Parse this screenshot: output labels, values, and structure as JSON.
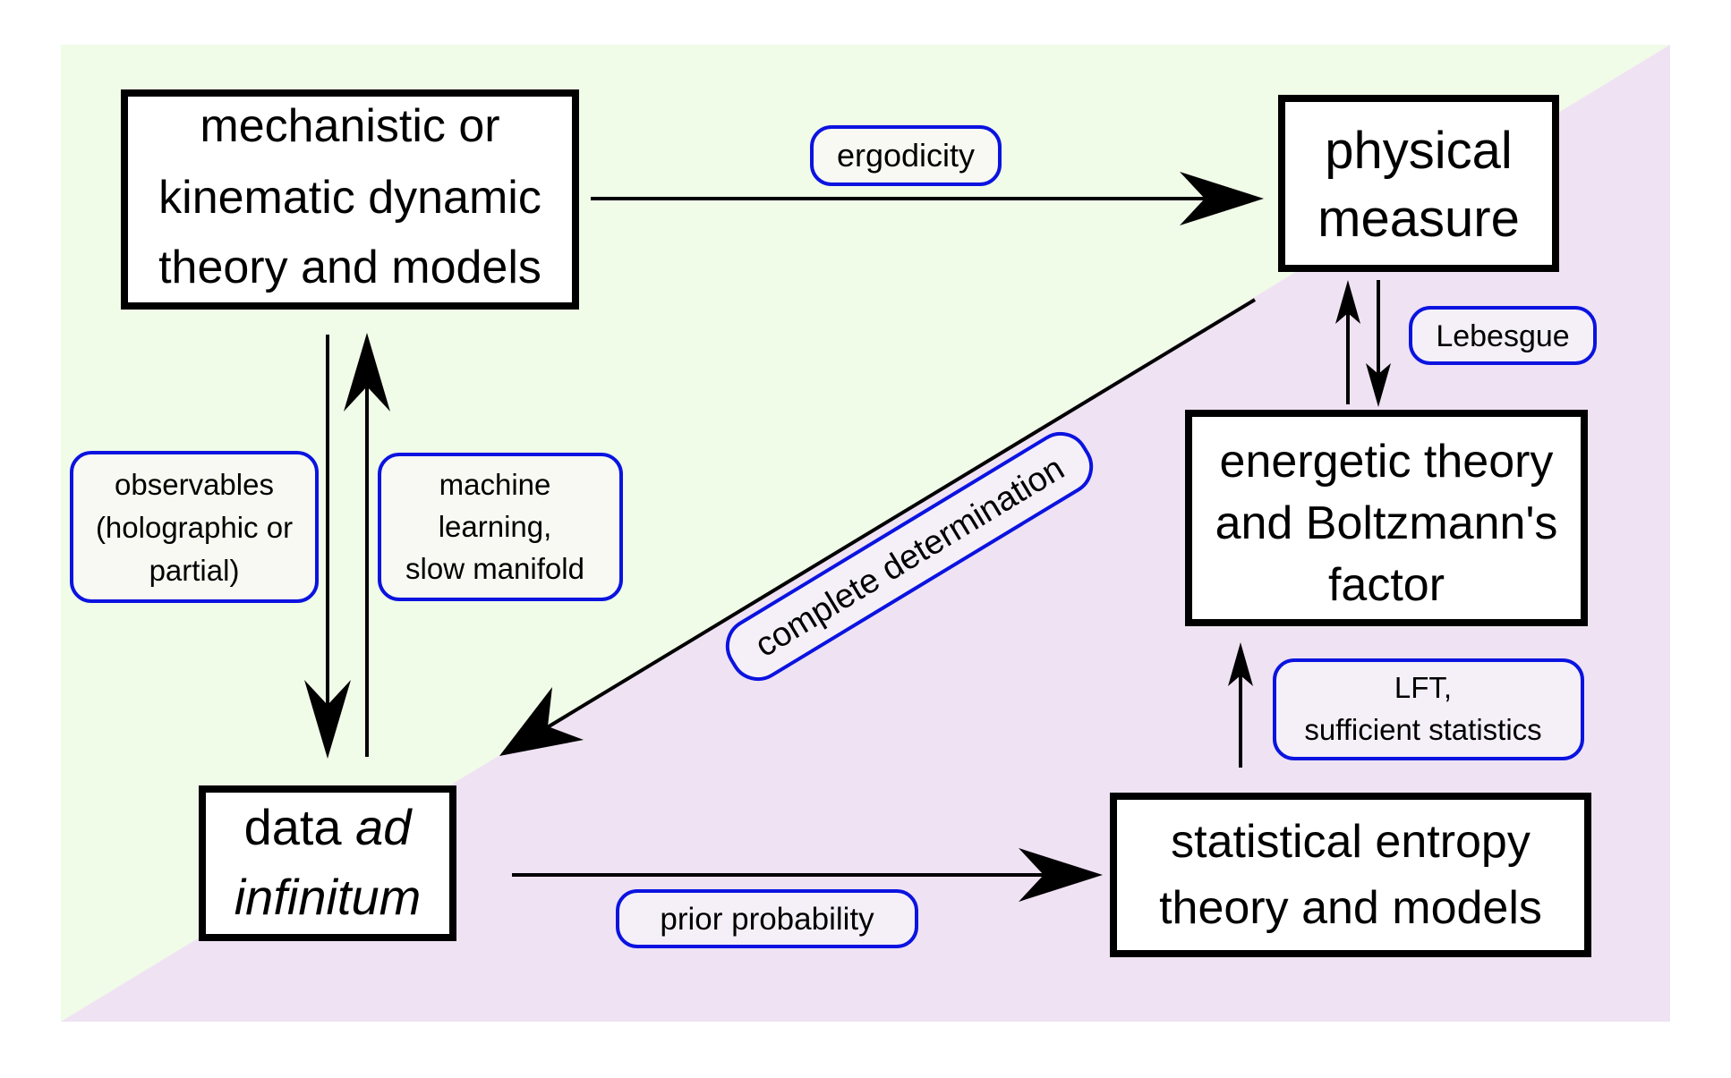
{
  "colors": {
    "green_region": "#f0fbe8",
    "purple_region": "#efe2f3",
    "label_border": "#0b13e0",
    "box_border": "#000000"
  },
  "nodes": {
    "mechanistic": [
      "mechanistic or",
      "kinematic dynamic",
      "theory and models"
    ],
    "physical_measure": [
      "physical",
      "measure"
    ],
    "energetic": [
      "energetic theory",
      "and Boltzmann's",
      "factor"
    ],
    "data": {
      "part1": "data ",
      "part2_italic": "ad",
      "line2_italic": "infinitum"
    },
    "statistical": [
      "statistical entropy",
      "theory and models"
    ]
  },
  "edge_labels": {
    "ergodicity": "ergodicity",
    "lebesgue": "Lebesgue",
    "observables": [
      "observables",
      "(holographic or",
      "partial)"
    ],
    "machine_learning": [
      "machine",
      "learning,",
      "slow manifold"
    ],
    "complete_determination": "complete determination",
    "lft": [
      "LFT,",
      "sufficient statistics"
    ],
    "prior_probability": "prior probability"
  }
}
